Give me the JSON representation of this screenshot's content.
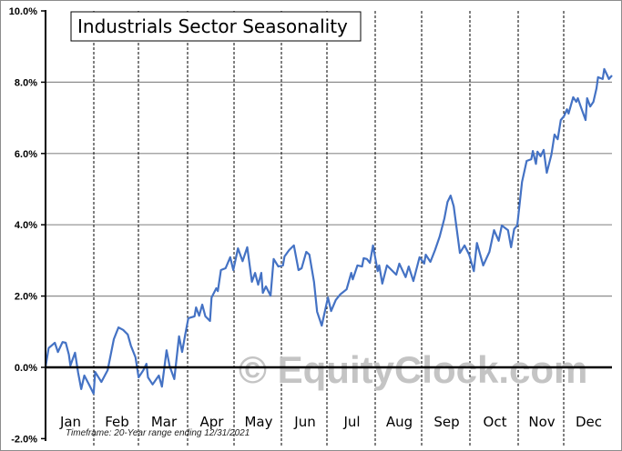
{
  "chart_data": {
    "type": "line",
    "title": "Industrials Sector Seasonality",
    "xlabel": "",
    "ylabel": "",
    "ylim": [
      -2,
      10
    ],
    "xlim_days": [
      0,
      365
    ],
    "y_ticks": [
      "-2.0%",
      "0.0%",
      "2.0%",
      "4.0%",
      "6.0%",
      "8.0%",
      "10.0%"
    ],
    "y_tick_values": [
      -2,
      0,
      2,
      4,
      6,
      8,
      10
    ],
    "months": [
      "Jan",
      "Feb",
      "Mar",
      "Apr",
      "May",
      "Jun",
      "Jul",
      "Aug",
      "Sep",
      "Oct",
      "Nov",
      "Dec"
    ],
    "grid": true,
    "footnote": "Timeframe: 20-Year range ending 12/31/2021",
    "watermark": "© EquityClock.com",
    "line_color": "#4472c4",
    "series": [
      {
        "name": "Industrials Sector Seasonality",
        "x_day": [
          0,
          2,
          6,
          8,
          11,
          13,
          15,
          16,
          19,
          21,
          23,
          25,
          28,
          31,
          32,
          36,
          40,
          44,
          47,
          50,
          53,
          55,
          58,
          60,
          63,
          65,
          66,
          69,
          73,
          75,
          78,
          80,
          83,
          86,
          88,
          90,
          92,
          96,
          97,
          99,
          101,
          103,
          106,
          107,
          110,
          111,
          113,
          116,
          119,
          121,
          124,
          127,
          130,
          133,
          135,
          137,
          139,
          140,
          142,
          145,
          147,
          150,
          153,
          154,
          157,
          160,
          163,
          165,
          168,
          170,
          173,
          175,
          178,
          182,
          184,
          187,
          190,
          194,
          197,
          198,
          201,
          204,
          205,
          207,
          209,
          211,
          214,
          215,
          217,
          220,
          223,
          226,
          228,
          232,
          234,
          237,
          241,
          244,
          245,
          248,
          251,
          254,
          257,
          259,
          261,
          263,
          267,
          270,
          273,
          276,
          278,
          282,
          286,
          289,
          292,
          294,
          298,
          300,
          302,
          304,
          307,
          310,
          313,
          314,
          316,
          317,
          319,
          321,
          323,
          326,
          328,
          330,
          332,
          334,
          336,
          337,
          340,
          342,
          343,
          345,
          348,
          349,
          351,
          353,
          355,
          356,
          359,
          360,
          362,
          363,
          365
        ],
        "values": [
          0.0,
          0.54,
          0.69,
          0.43,
          0.71,
          0.69,
          0.36,
          0.05,
          0.41,
          -0.15,
          -0.61,
          -0.23,
          -0.48,
          -0.74,
          -0.13,
          -0.41,
          -0.08,
          0.79,
          1.12,
          1.05,
          0.92,
          0.61,
          0.28,
          -0.28,
          -0.08,
          0.1,
          -0.28,
          -0.48,
          -0.23,
          -0.54,
          0.48,
          0.03,
          -0.33,
          0.87,
          0.43,
          0.92,
          1.38,
          1.43,
          1.68,
          1.45,
          1.76,
          1.43,
          1.3,
          1.96,
          2.22,
          2.14,
          2.73,
          2.78,
          3.09,
          2.73,
          3.34,
          2.98,
          3.37,
          2.4,
          2.65,
          2.32,
          2.65,
          2.09,
          2.27,
          2.01,
          3.04,
          2.83,
          2.86,
          3.11,
          3.29,
          3.42,
          2.73,
          2.78,
          3.24,
          3.16,
          2.4,
          1.56,
          1.17,
          1.96,
          1.58,
          1.89,
          2.05,
          2.19,
          2.65,
          2.47,
          2.86,
          2.83,
          3.06,
          3.04,
          2.93,
          3.42,
          2.7,
          2.86,
          2.35,
          2.86,
          2.73,
          2.6,
          2.91,
          2.53,
          2.83,
          2.42,
          3.09,
          2.91,
          3.16,
          2.96,
          3.29,
          3.67,
          4.18,
          4.64,
          4.82,
          4.52,
          3.21,
          3.42,
          3.16,
          2.7,
          3.49,
          2.86,
          3.24,
          3.85,
          3.55,
          3.98,
          3.85,
          3.37,
          3.88,
          3.98,
          5.2,
          5.79,
          5.84,
          6.07,
          5.71,
          6.05,
          5.92,
          6.1,
          5.46,
          5.97,
          6.53,
          6.4,
          6.94,
          7.04,
          7.24,
          7.12,
          7.58,
          7.45,
          7.55,
          7.3,
          6.94,
          7.55,
          7.32,
          7.45,
          7.83,
          8.14,
          8.09,
          8.37,
          8.19,
          8.09,
          8.19
        ]
      }
    ]
  }
}
